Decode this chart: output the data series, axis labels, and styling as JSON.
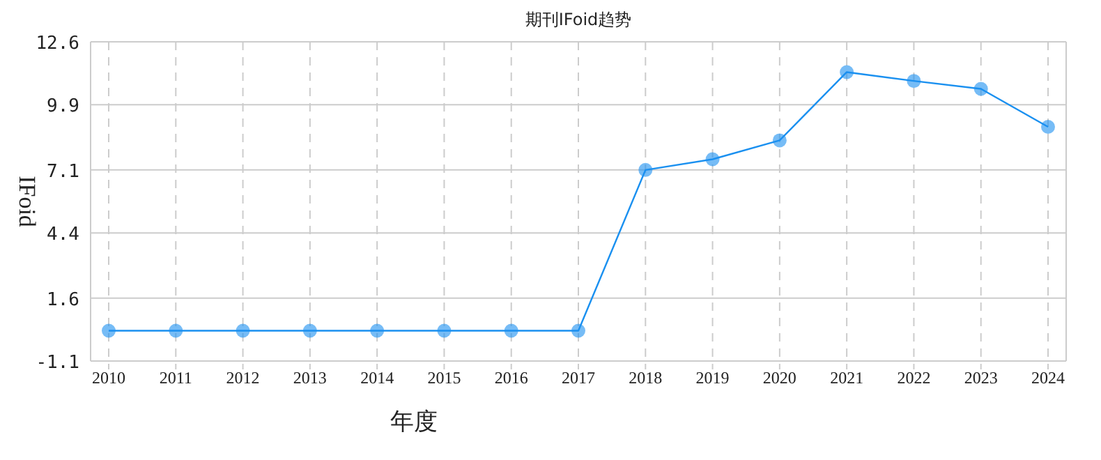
{
  "chart_data": {
    "type": "line",
    "title": "期刊IFoid趋势",
    "xlabel": "年度",
    "ylabel": "IFoid",
    "categories": [
      "2010",
      "2011",
      "2012",
      "2013",
      "2014",
      "2015",
      "2016",
      "2017",
      "2018",
      "2019",
      "2020",
      "2021",
      "2022",
      "2023",
      "2024"
    ],
    "series": [
      {
        "color": "#1a90f0",
        "values": [
          0.2,
          0.2,
          0.2,
          0.2,
          0.2,
          0.2,
          0.2,
          0.2,
          7.1,
          7.56,
          8.37,
          11.3,
          10.92,
          10.58,
          8.95
        ]
      }
    ],
    "ylim": [
      -1.1,
      12.6
    ],
    "yticks": [
      -1.1,
      1.6,
      4.4,
      7.1,
      9.9,
      12.6
    ],
    "grid": true,
    "marker": "circle",
    "line_style": "solid"
  }
}
